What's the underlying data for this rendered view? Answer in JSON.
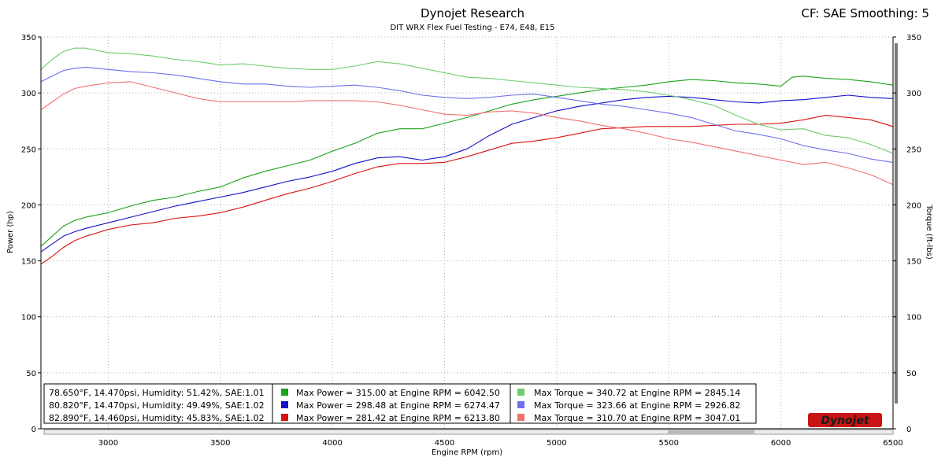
{
  "header": {
    "title": "Dynojet Research",
    "subtitle": "DIT WRX Flex Fuel Testing - E74, E48, E15",
    "cf_label": "CF: SAE Smoothing: 5"
  },
  "logo": {
    "text": "Dynojet"
  },
  "colors": {
    "power_green": "#1aa31a",
    "power_blue": "#1010c8",
    "power_red": "#d81010",
    "torque_green": "#6ecc6e",
    "torque_blue": "#6e6ef0",
    "torque_red": "#f07070"
  },
  "legend": {
    "rows": [
      {
        "conditions": "78.650°F, 14.470psi, Humidity: 51.42%, SAE:1.01",
        "power": "Max Power = 315.00 at Engine RPM = 6042.50",
        "torque": "Max Torque = 340.72 at Engine RPM = 2845.14",
        "power_color": "#1aa31a",
        "torque_color": "#6ecc6e"
      },
      {
        "conditions": "80.820°F, 14.470psi, Humidity: 49.49%, SAE:1.02",
        "power": "Max Power = 298.48 at Engine RPM = 6274.47",
        "torque": "Max Torque = 323.66 at Engine RPM = 2926.82",
        "power_color": "#1010c8",
        "torque_color": "#6e6ef0"
      },
      {
        "conditions": "82.890°F, 14.460psi, Humidity: 45.83%, SAE:1.02",
        "power": "Max Power = 281.42 at Engine RPM = 6213.80",
        "torque": "Max Torque = 310.70 at Engine RPM = 3047.01",
        "power_color": "#d81010",
        "torque_color": "#f07070"
      }
    ]
  },
  "chart_data": {
    "type": "line",
    "xlabel": "Engine RPM (rpm)",
    "ylabel_left": "Power (hp)",
    "ylabel_right": "Torque (ft-lbs)",
    "xlim": [
      2700,
      6500
    ],
    "ylim": [
      0,
      350
    ],
    "x_ticks": [
      3000,
      3500,
      4000,
      4500,
      5000,
      5500,
      6000,
      6500
    ],
    "y_ticks": [
      0,
      50,
      100,
      150,
      200,
      250,
      300,
      350
    ],
    "grid": true,
    "legend_position": "bottom-left",
    "series": [
      {
        "kind": "power",
        "color": "#1aa31a",
        "points": [
          [
            2700,
            163
          ],
          [
            2750,
            172
          ],
          [
            2800,
            181
          ],
          [
            2850,
            186
          ],
          [
            2900,
            189
          ],
          [
            3000,
            193
          ],
          [
            3100,
            199
          ],
          [
            3200,
            204
          ],
          [
            3300,
            207
          ],
          [
            3400,
            212
          ],
          [
            3500,
            216
          ],
          [
            3600,
            224
          ],
          [
            3700,
            230
          ],
          [
            3800,
            235
          ],
          [
            3900,
            240
          ],
          [
            4000,
            248
          ],
          [
            4100,
            255
          ],
          [
            4200,
            264
          ],
          [
            4300,
            268
          ],
          [
            4400,
            268
          ],
          [
            4500,
            273
          ],
          [
            4600,
            278
          ],
          [
            4700,
            284
          ],
          [
            4800,
            290
          ],
          [
            4900,
            294
          ],
          [
            5000,
            297
          ],
          [
            5100,
            300
          ],
          [
            5200,
            303
          ],
          [
            5300,
            305
          ],
          [
            5400,
            307
          ],
          [
            5500,
            310
          ],
          [
            5600,
            312
          ],
          [
            5700,
            311
          ],
          [
            5800,
            309
          ],
          [
            5900,
            308
          ],
          [
            6000,
            306
          ],
          [
            6050,
            314
          ],
          [
            6100,
            315
          ],
          [
            6200,
            313
          ],
          [
            6300,
            312
          ],
          [
            6400,
            310
          ],
          [
            6500,
            307
          ]
        ]
      },
      {
        "kind": "power",
        "color": "#1010c8",
        "points": [
          [
            2700,
            158
          ],
          [
            2750,
            165
          ],
          [
            2800,
            172
          ],
          [
            2850,
            176
          ],
          [
            2900,
            179
          ],
          [
            3000,
            184
          ],
          [
            3100,
            189
          ],
          [
            3200,
            194
          ],
          [
            3300,
            199
          ],
          [
            3400,
            203
          ],
          [
            3500,
            207
          ],
          [
            3600,
            211
          ],
          [
            3700,
            216
          ],
          [
            3800,
            221
          ],
          [
            3900,
            225
          ],
          [
            4000,
            230
          ],
          [
            4100,
            237
          ],
          [
            4200,
            242
          ],
          [
            4300,
            243
          ],
          [
            4400,
            240
          ],
          [
            4500,
            243
          ],
          [
            4600,
            250
          ],
          [
            4700,
            262
          ],
          [
            4800,
            272
          ],
          [
            4900,
            278
          ],
          [
            5000,
            284
          ],
          [
            5100,
            288
          ],
          [
            5200,
            291
          ],
          [
            5300,
            294
          ],
          [
            5400,
            296
          ],
          [
            5500,
            297
          ],
          [
            5600,
            296
          ],
          [
            5700,
            294
          ],
          [
            5800,
            292
          ],
          [
            5900,
            291
          ],
          [
            6000,
            293
          ],
          [
            6100,
            294
          ],
          [
            6200,
            296
          ],
          [
            6300,
            298
          ],
          [
            6400,
            296
          ],
          [
            6500,
            295
          ]
        ]
      },
      {
        "kind": "power",
        "color": "#d81010",
        "points": [
          [
            2700,
            147
          ],
          [
            2750,
            154
          ],
          [
            2800,
            162
          ],
          [
            2850,
            168
          ],
          [
            2900,
            172
          ],
          [
            3000,
            178
          ],
          [
            3100,
            182
          ],
          [
            3200,
            184
          ],
          [
            3300,
            188
          ],
          [
            3400,
            190
          ],
          [
            3500,
            193
          ],
          [
            3600,
            198
          ],
          [
            3700,
            204
          ],
          [
            3800,
            210
          ],
          [
            3900,
            215
          ],
          [
            4000,
            221
          ],
          [
            4100,
            228
          ],
          [
            4200,
            234
          ],
          [
            4300,
            237
          ],
          [
            4400,
            237
          ],
          [
            4500,
            238
          ],
          [
            4600,
            243
          ],
          [
            4700,
            249
          ],
          [
            4800,
            255
          ],
          [
            4900,
            257
          ],
          [
            5000,
            260
          ],
          [
            5100,
            264
          ],
          [
            5200,
            268
          ],
          [
            5300,
            269
          ],
          [
            5400,
            270
          ],
          [
            5500,
            270
          ],
          [
            5600,
            270
          ],
          [
            5700,
            271
          ],
          [
            5800,
            272
          ],
          [
            5900,
            272
          ],
          [
            6000,
            273
          ],
          [
            6100,
            276
          ],
          [
            6200,
            280
          ],
          [
            6300,
            278
          ],
          [
            6400,
            276
          ],
          [
            6500,
            270
          ]
        ]
      },
      {
        "kind": "torque",
        "color": "#6ecc6e",
        "points": [
          [
            2700,
            321
          ],
          [
            2750,
            330
          ],
          [
            2800,
            337
          ],
          [
            2850,
            340
          ],
          [
            2900,
            340
          ],
          [
            3000,
            336
          ],
          [
            3100,
            335
          ],
          [
            3200,
            333
          ],
          [
            3300,
            330
          ],
          [
            3400,
            328
          ],
          [
            3500,
            325
          ],
          [
            3600,
            326
          ],
          [
            3700,
            324
          ],
          [
            3800,
            322
          ],
          [
            3900,
            321
          ],
          [
            4000,
            321
          ],
          [
            4100,
            324
          ],
          [
            4200,
            328
          ],
          [
            4300,
            326
          ],
          [
            4400,
            322
          ],
          [
            4500,
            318
          ],
          [
            4600,
            314
          ],
          [
            4700,
            313
          ],
          [
            4800,
            311
          ],
          [
            4900,
            309
          ],
          [
            5000,
            307
          ],
          [
            5100,
            305
          ],
          [
            5200,
            304
          ],
          [
            5300,
            303
          ],
          [
            5400,
            301
          ],
          [
            5500,
            298
          ],
          [
            5600,
            294
          ],
          [
            5700,
            289
          ],
          [
            5800,
            280
          ],
          [
            5900,
            272
          ],
          [
            6000,
            267
          ],
          [
            6100,
            268
          ],
          [
            6200,
            262
          ],
          [
            6300,
            260
          ],
          [
            6400,
            254
          ],
          [
            6500,
            246
          ]
        ]
      },
      {
        "kind": "torque",
        "color": "#6e6ef0",
        "points": [
          [
            2700,
            310
          ],
          [
            2750,
            315
          ],
          [
            2800,
            320
          ],
          [
            2850,
            322
          ],
          [
            2900,
            323
          ],
          [
            3000,
            321
          ],
          [
            3100,
            319
          ],
          [
            3200,
            318
          ],
          [
            3300,
            316
          ],
          [
            3400,
            313
          ],
          [
            3500,
            310
          ],
          [
            3600,
            308
          ],
          [
            3700,
            308
          ],
          [
            3800,
            306
          ],
          [
            3900,
            305
          ],
          [
            4000,
            306
          ],
          [
            4100,
            307
          ],
          [
            4200,
            305
          ],
          [
            4300,
            302
          ],
          [
            4400,
            298
          ],
          [
            4500,
            296
          ],
          [
            4600,
            295
          ],
          [
            4700,
            296
          ],
          [
            4800,
            298
          ],
          [
            4900,
            299
          ],
          [
            5000,
            296
          ],
          [
            5100,
            293
          ],
          [
            5200,
            290
          ],
          [
            5300,
            288
          ],
          [
            5400,
            285
          ],
          [
            5500,
            282
          ],
          [
            5600,
            278
          ],
          [
            5700,
            272
          ],
          [
            5800,
            266
          ],
          [
            5900,
            263
          ],
          [
            6000,
            259
          ],
          [
            6100,
            253
          ],
          [
            6200,
            249
          ],
          [
            6300,
            246
          ],
          [
            6400,
            241
          ],
          [
            6500,
            238
          ]
        ]
      },
      {
        "kind": "torque",
        "color": "#f07070",
        "points": [
          [
            2700,
            285
          ],
          [
            2750,
            292
          ],
          [
            2800,
            299
          ],
          [
            2850,
            304
          ],
          [
            2900,
            306
          ],
          [
            3000,
            309
          ],
          [
            3100,
            310
          ],
          [
            3200,
            305
          ],
          [
            3300,
            300
          ],
          [
            3400,
            295
          ],
          [
            3500,
            292
          ],
          [
            3600,
            292
          ],
          [
            3700,
            292
          ],
          [
            3800,
            292
          ],
          [
            3900,
            293
          ],
          [
            4000,
            293
          ],
          [
            4100,
            293
          ],
          [
            4200,
            292
          ],
          [
            4300,
            289
          ],
          [
            4400,
            285
          ],
          [
            4500,
            281
          ],
          [
            4600,
            280
          ],
          [
            4700,
            283
          ],
          [
            4800,
            284
          ],
          [
            4900,
            282
          ],
          [
            5000,
            278
          ],
          [
            5100,
            275
          ],
          [
            5200,
            271
          ],
          [
            5300,
            268
          ],
          [
            5400,
            264
          ],
          [
            5500,
            259
          ],
          [
            5600,
            256
          ],
          [
            5700,
            252
          ],
          [
            5800,
            248
          ],
          [
            5900,
            244
          ],
          [
            6000,
            240
          ],
          [
            6100,
            236
          ],
          [
            6200,
            238
          ],
          [
            6300,
            233
          ],
          [
            6400,
            227
          ],
          [
            6500,
            218
          ]
        ]
      }
    ]
  }
}
